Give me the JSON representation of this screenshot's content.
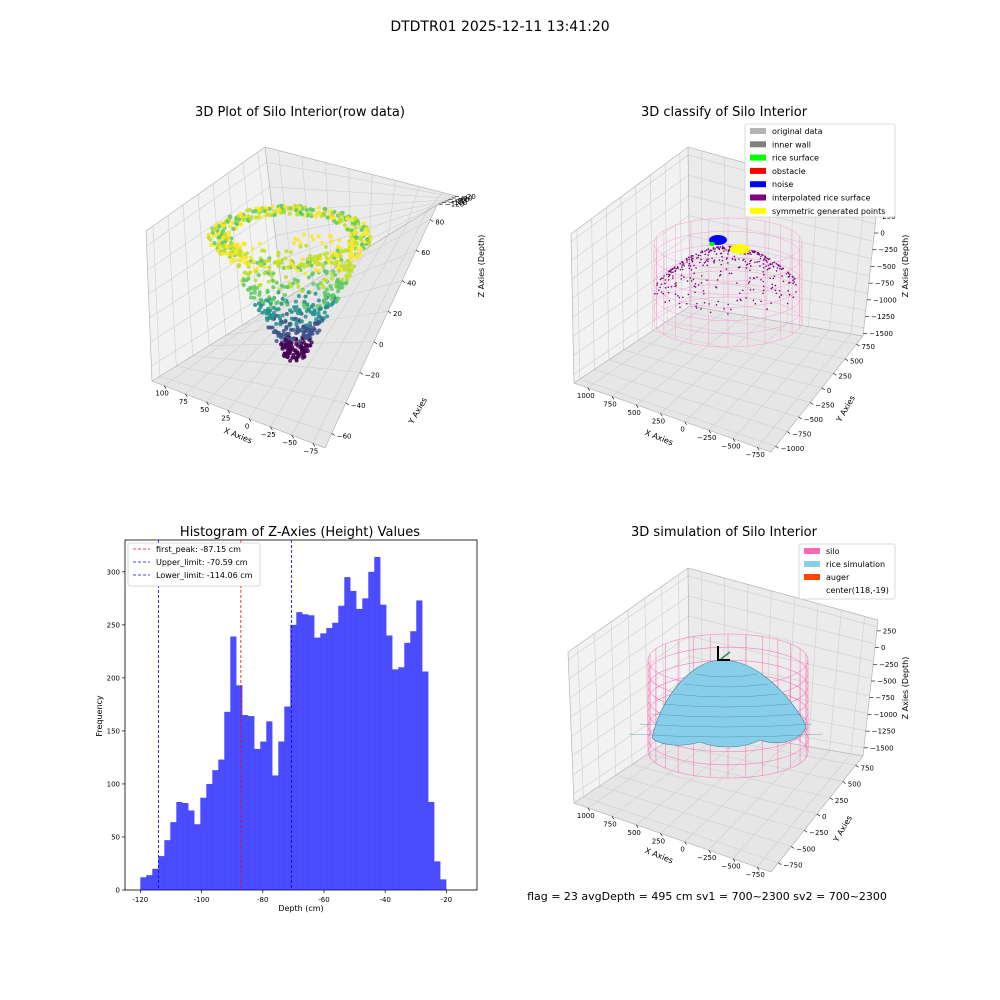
{
  "suptitle": "DTDTR01 2025-12-11 13:41:20",
  "footer": "flag = 23  avgDepth = 495 cm  sv1 = 700~2300  sv2 = 700~2300",
  "chart_data": [
    {
      "id": "raw",
      "type": "scatter",
      "title": "3D Plot of Silo Interior(row data)",
      "xlabel": "X Axies",
      "ylabel": "Y Axies",
      "zlabel": "Z Axies (Depth)",
      "xticks": [
        "−75",
        "−50",
        "−25",
        "0",
        "25",
        "50",
        "75",
        "100"
      ],
      "yticks": [
        "−60",
        "−40",
        "−20",
        "0",
        "20",
        "40",
        "60",
        "80"
      ],
      "zticks": [
        "−20",
        "−40",
        "−60",
        "−80",
        "−100",
        "−120"
      ],
      "xlim": [
        -90,
        105
      ],
      "ylim": [
        -65,
        90
      ],
      "zlim": [
        -130,
        -15
      ],
      "colormap": "viridis"
    },
    {
      "id": "classify",
      "type": "scatter",
      "title": "3D classify of Silo Interior",
      "xlabel": "X Axies",
      "ylabel": "Y Axies",
      "zlabel": "Z Axies (Depth)",
      "xticks": [
        "−750",
        "−500",
        "−250",
        "0",
        "250",
        "500",
        "750",
        "1000"
      ],
      "yticks": [
        "−1000",
        "−750",
        "−500",
        "−250",
        "0",
        "250",
        "500",
        "750"
      ],
      "zticks": [
        "250",
        "0",
        "−250",
        "−500",
        "−750",
        "−1000",
        "−1250",
        "−1500"
      ],
      "legend_position": "upper-right",
      "legend": [
        {
          "label": "original data",
          "color": "#b3b3b3"
        },
        {
          "label": "inner wall",
          "color": "#808080"
        },
        {
          "label": "rice surface",
          "color": "#00ff00"
        },
        {
          "label": "obstacle",
          "color": "#ff0000"
        },
        {
          "label": "noise",
          "color": "#0000ff"
        },
        {
          "label": "interpolated rice surface",
          "color": "#800080"
        },
        {
          "label": "symmetric generated points",
          "color": "#ffff00"
        }
      ]
    },
    {
      "id": "histogram",
      "type": "bar",
      "title": "Histogram of Z-Axies (Height) Values",
      "xlabel": "Depth (cm)",
      "ylabel": "Frequency",
      "xlim": [
        -125,
        -10
      ],
      "ylim": [
        0,
        330
      ],
      "xticks": [
        -120,
        -100,
        -80,
        -60,
        -40,
        -20
      ],
      "yticks": [
        0,
        50,
        100,
        150,
        200,
        250,
        300
      ],
      "bar_color": "#0000ff",
      "bin_start": -120,
      "bin_width": 1.96,
      "values": [
        12,
        14,
        20,
        32,
        47,
        64,
        83,
        82,
        75,
        62,
        87,
        100,
        113,
        123,
        168,
        239,
        193,
        165,
        164,
        133,
        140,
        159,
        108,
        140,
        173,
        250,
        262,
        260,
        259,
        238,
        242,
        247,
        252,
        268,
        295,
        282,
        265,
        275,
        300,
        314,
        269,
        240,
        208,
        210,
        233,
        244,
        273,
        206,
        83,
        27,
        10
      ],
      "legend_position": "upper-left",
      "lines": [
        {
          "label": "first_peak: -87.15 cm",
          "x": -87.15,
          "color": "#ff0000"
        },
        {
          "label": "Upper_limit: -70.59 cm",
          "x": -70.59,
          "color": "#0000ff"
        },
        {
          "label": "Lower_limit: -114.06 cm",
          "x": -114.06,
          "color": "#0000ff"
        }
      ]
    },
    {
      "id": "simulation",
      "type": "area",
      "title": "3D simulation of Silo Interior",
      "xlabel": "X Axies",
      "ylabel": "Y Axies",
      "zlabel": "Z Axies (Depth)",
      "xticks": [
        "−750",
        "−500",
        "−250",
        "0",
        "250",
        "500",
        "750",
        "1000"
      ],
      "yticks": [
        "−750",
        "−500",
        "−250",
        "0",
        "250",
        "500",
        "750"
      ],
      "zticks": [
        "250",
        "0",
        "−250",
        "−500",
        "−750",
        "−1000",
        "−1250",
        "−1500"
      ],
      "legend_position": "upper-right",
      "legend": [
        {
          "label": "silo",
          "color": "#ff69b4"
        },
        {
          "label": "rice simulation",
          "color": "#87ceeb"
        },
        {
          "label": "auger",
          "color": "#ff4500"
        },
        {
          "label": "center(118,-19)",
          "color": "none"
        }
      ]
    }
  ]
}
